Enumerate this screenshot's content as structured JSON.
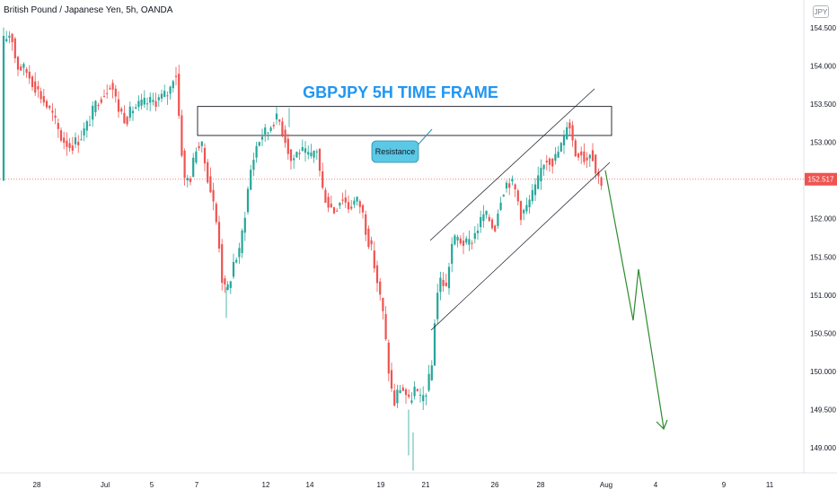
{
  "header": {
    "title": "British Pound / Japanese Yen, 5h, OANDA",
    "currency": "JPY"
  },
  "chart_data": {
    "type": "candlestick",
    "title": "GBPJPY 5H TIME FRAME",
    "y_ticks": [
      "154.500",
      "154.000",
      "153.500",
      "153.000",
      "152.500",
      "152.000",
      "151.500",
      "151.000",
      "150.500",
      "150.000",
      "149.500",
      "149.000"
    ],
    "x_ticks": [
      "28",
      "Jul",
      "5",
      "7",
      "12",
      "14",
      "19",
      "21",
      "26",
      "28",
      "Aug",
      "4",
      "9",
      "11"
    ],
    "current_price": "152.517",
    "ylim": [
      148.7,
      154.8
    ],
    "annotations": {
      "resistance_label": "Resistance",
      "resistance_zone": [
        153.09,
        153.47
      ]
    },
    "colors": {
      "up": "#26a69a",
      "down": "#ef5350",
      "price_line": "#ef5350",
      "title": "#2196f3",
      "projection": "#2e8b2e",
      "callout_fill": "#5bc8e6"
    }
  }
}
